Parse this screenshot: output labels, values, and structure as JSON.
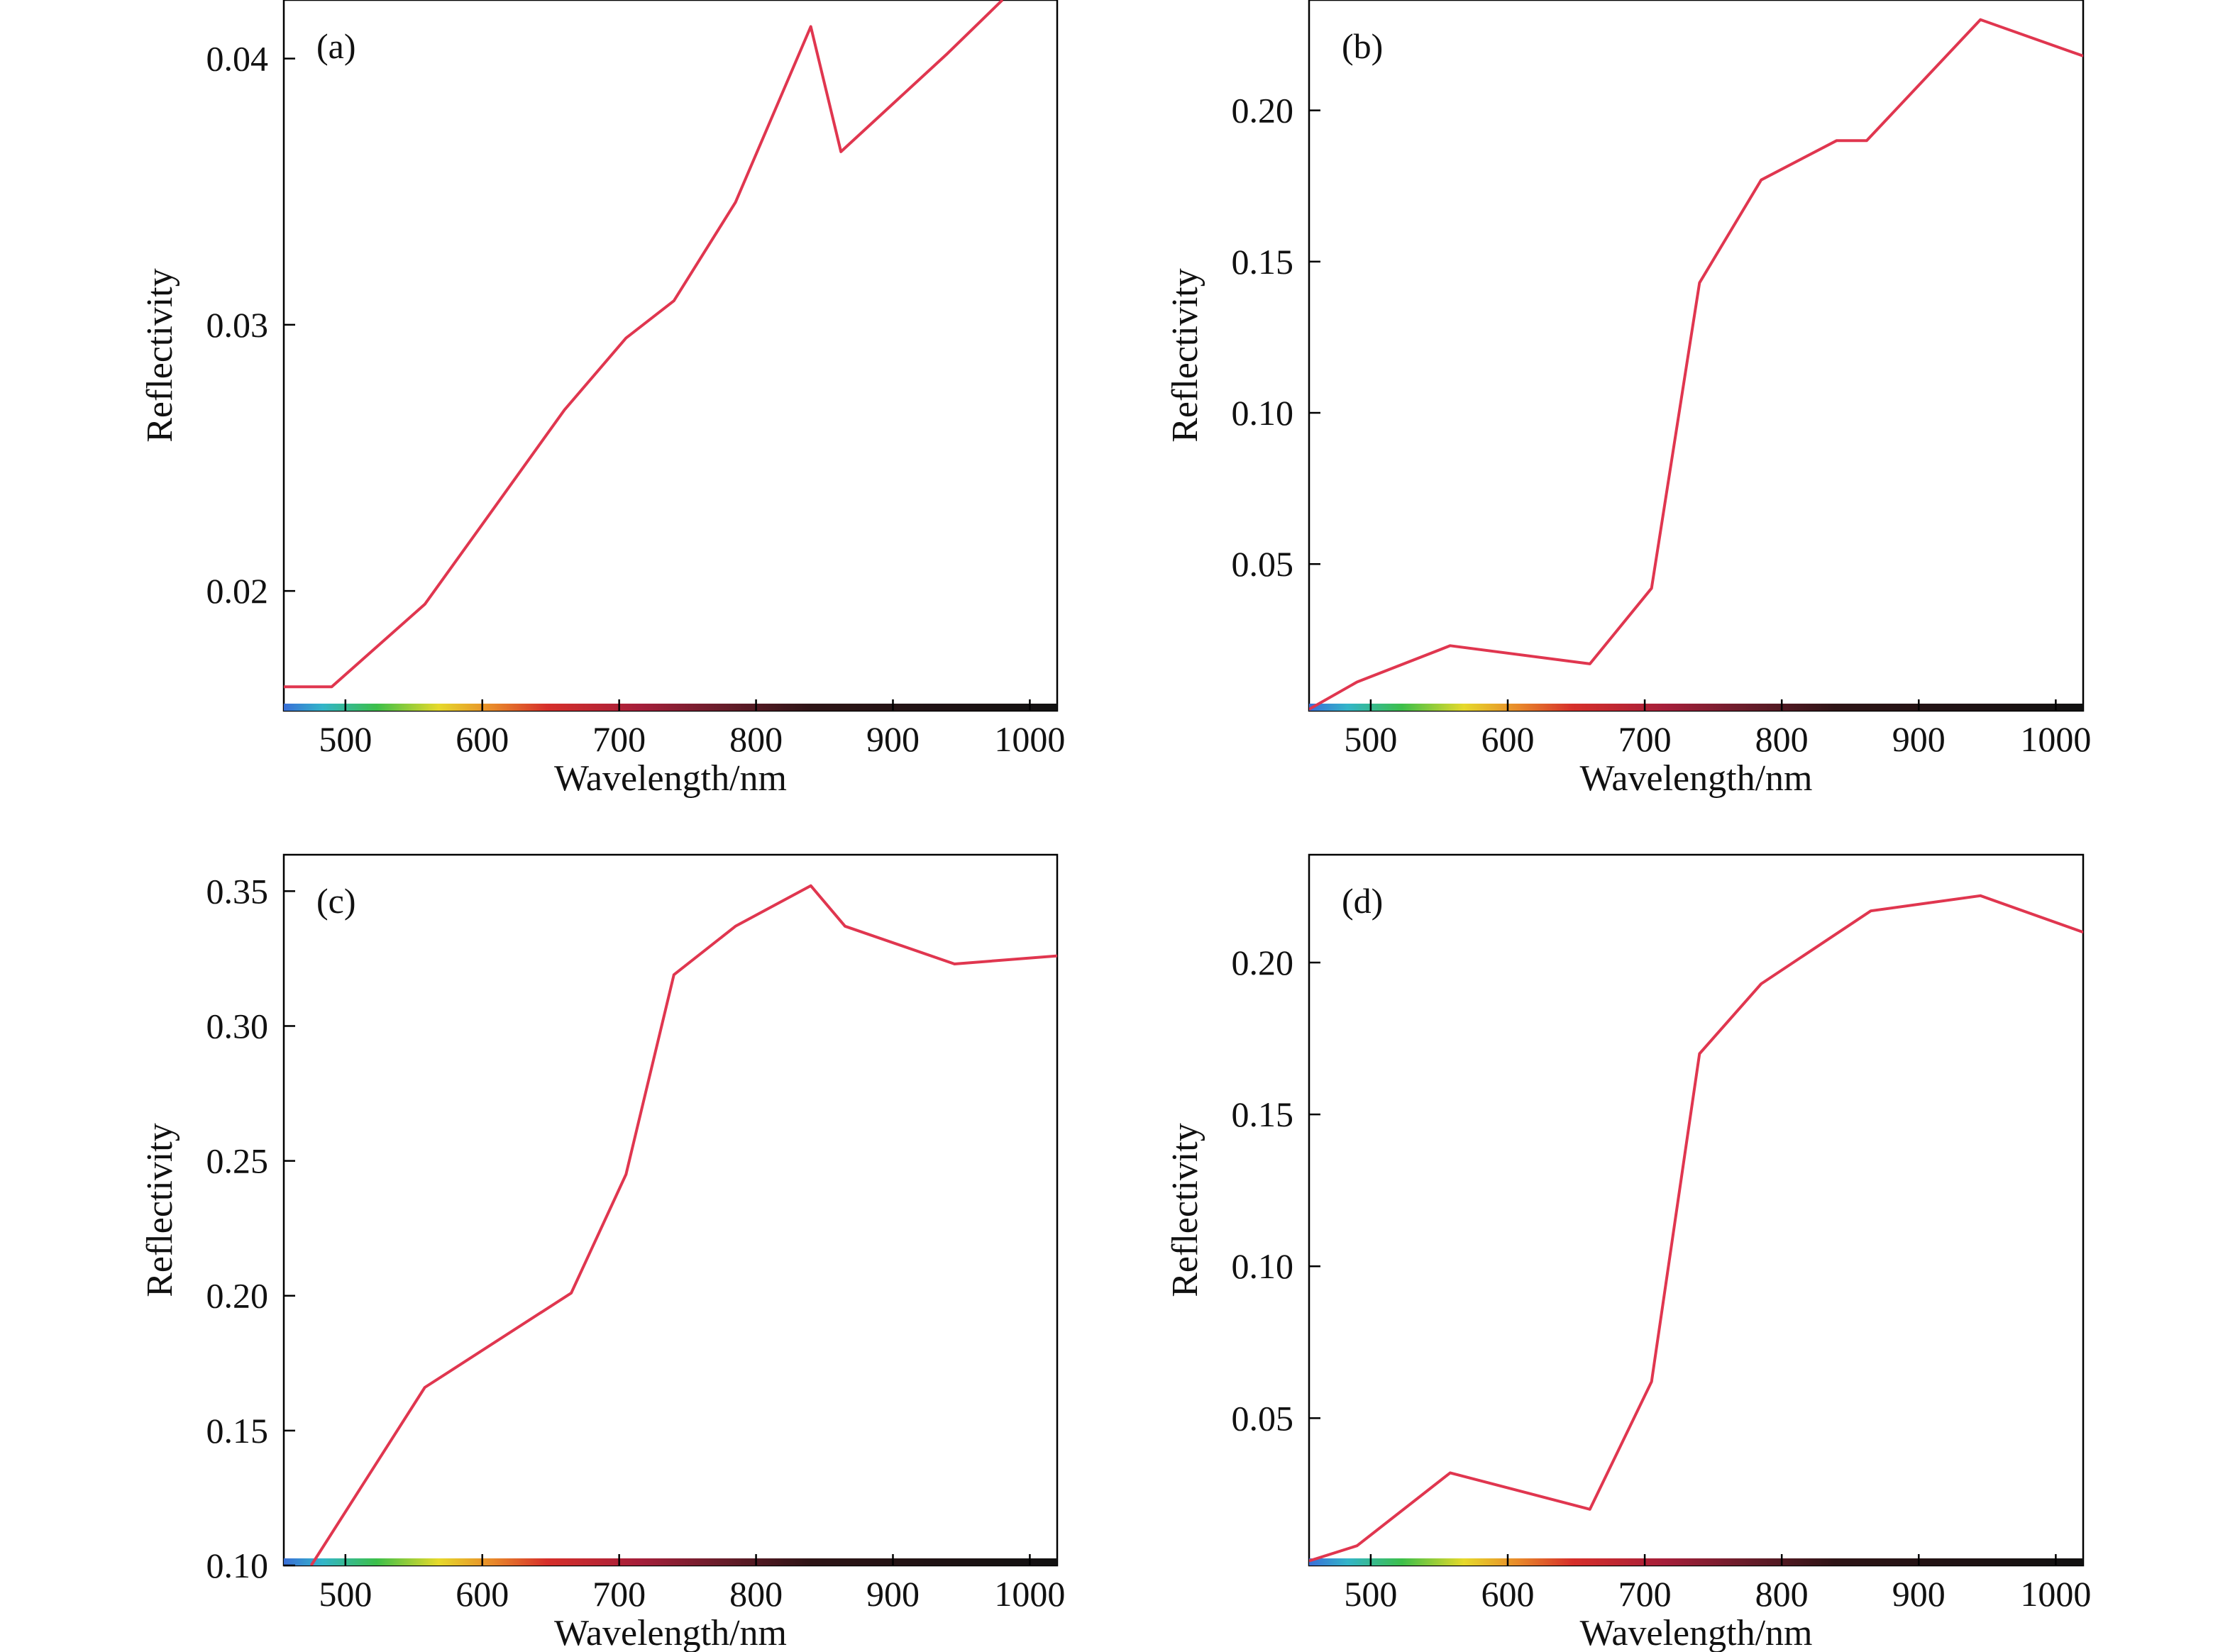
{
  "colors": {
    "line": "#e0364f",
    "axis": "#000000",
    "background": "#ffffff"
  },
  "chart_data": [
    {
      "panel_label": "(a)",
      "type": "line",
      "xlabel": "Wavelength/nm",
      "ylabel": "Reflectivity",
      "xlim": [
        455,
        1020
      ],
      "ylim": [
        0.0155,
        0.0422
      ],
      "xticks": [
        500,
        600,
        700,
        800,
        900,
        1000
      ],
      "xtick_labels": [
        "500",
        "600",
        "700",
        "800",
        "900",
        "1000"
      ],
      "yticks": [
        0.02,
        0.03,
        0.04
      ],
      "ytick_labels": [
        "0.02",
        "0.03",
        "0.04"
      ],
      "grid": false,
      "series": [
        {
          "x": [
            455,
            490,
            558,
            600,
            660,
            705,
            740,
            785,
            840,
            862,
            940,
            980
          ],
          "y": [
            0.0164,
            0.0164,
            0.0195,
            0.0225,
            0.0268,
            0.0295,
            0.0309,
            0.0346,
            0.0412,
            0.0365,
            0.0402,
            0.0422
          ]
        }
      ]
    },
    {
      "panel_label": "(b)",
      "type": "line",
      "xlabel": "Wavelength/nm",
      "ylabel": "Reflectivity",
      "xlim": [
        455,
        1020
      ],
      "ylim": [
        0.0015,
        0.2365
      ],
      "xticks": [
        500,
        600,
        700,
        800,
        900,
        1000
      ],
      "xtick_labels": [
        "500",
        "600",
        "700",
        "800",
        "900",
        "1000"
      ],
      "yticks": [
        0.05,
        0.1,
        0.15,
        0.2
      ],
      "ytick_labels": [
        "0.05",
        "0.10",
        "0.15",
        "0.20"
      ],
      "grid": false,
      "series": [
        {
          "x": [
            455,
            490,
            558,
            660,
            705,
            740,
            785,
            840,
            862,
            945,
            1020
          ],
          "y": [
            0.002,
            0.011,
            0.023,
            0.017,
            0.042,
            0.143,
            0.177,
            0.19,
            0.19,
            0.23,
            0.218
          ]
        }
      ]
    },
    {
      "panel_label": "(c)",
      "type": "line",
      "xlabel": "Wavelength/nm",
      "ylabel": "Reflectivity",
      "xlim": [
        455,
        1020
      ],
      "ylim": [
        0.1,
        0.3635
      ],
      "xticks": [
        500,
        600,
        700,
        800,
        900,
        1000
      ],
      "xtick_labels": [
        "500",
        "600",
        "700",
        "800",
        "900",
        "1000"
      ],
      "yticks": [
        0.1,
        0.15,
        0.2,
        0.25,
        0.3,
        0.35
      ],
      "ytick_labels": [
        "0.10",
        "0.15",
        "0.20",
        "0.25",
        "0.30",
        "0.35"
      ],
      "grid": false,
      "series": [
        {
          "x": [
            475,
            558,
            665,
            705,
            740,
            785,
            840,
            865,
            945,
            1020
          ],
          "y": [
            0.1,
            0.166,
            0.201,
            0.245,
            0.319,
            0.337,
            0.352,
            0.337,
            0.323,
            0.326
          ]
        }
      ]
    },
    {
      "panel_label": "(d)",
      "type": "line",
      "xlabel": "Wavelength/nm",
      "ylabel": "Reflectivity",
      "xlim": [
        455,
        1020
      ],
      "ylim": [
        0.0015,
        0.2355
      ],
      "xticks": [
        500,
        600,
        700,
        800,
        900,
        1000
      ],
      "xtick_labels": [
        "500",
        "600",
        "700",
        "800",
        "900",
        "1000"
      ],
      "yticks": [
        0.05,
        0.1,
        0.15,
        0.2
      ],
      "ytick_labels": [
        "0.05",
        "0.10",
        "0.15",
        "0.20"
      ],
      "grid": false,
      "series": [
        {
          "x": [
            455,
            490,
            558,
            660,
            705,
            740,
            785,
            865,
            945,
            1020
          ],
          "y": [
            0.003,
            0.008,
            0.032,
            0.02,
            0.062,
            0.17,
            0.193,
            0.217,
            0.222,
            0.21
          ]
        }
      ]
    }
  ]
}
